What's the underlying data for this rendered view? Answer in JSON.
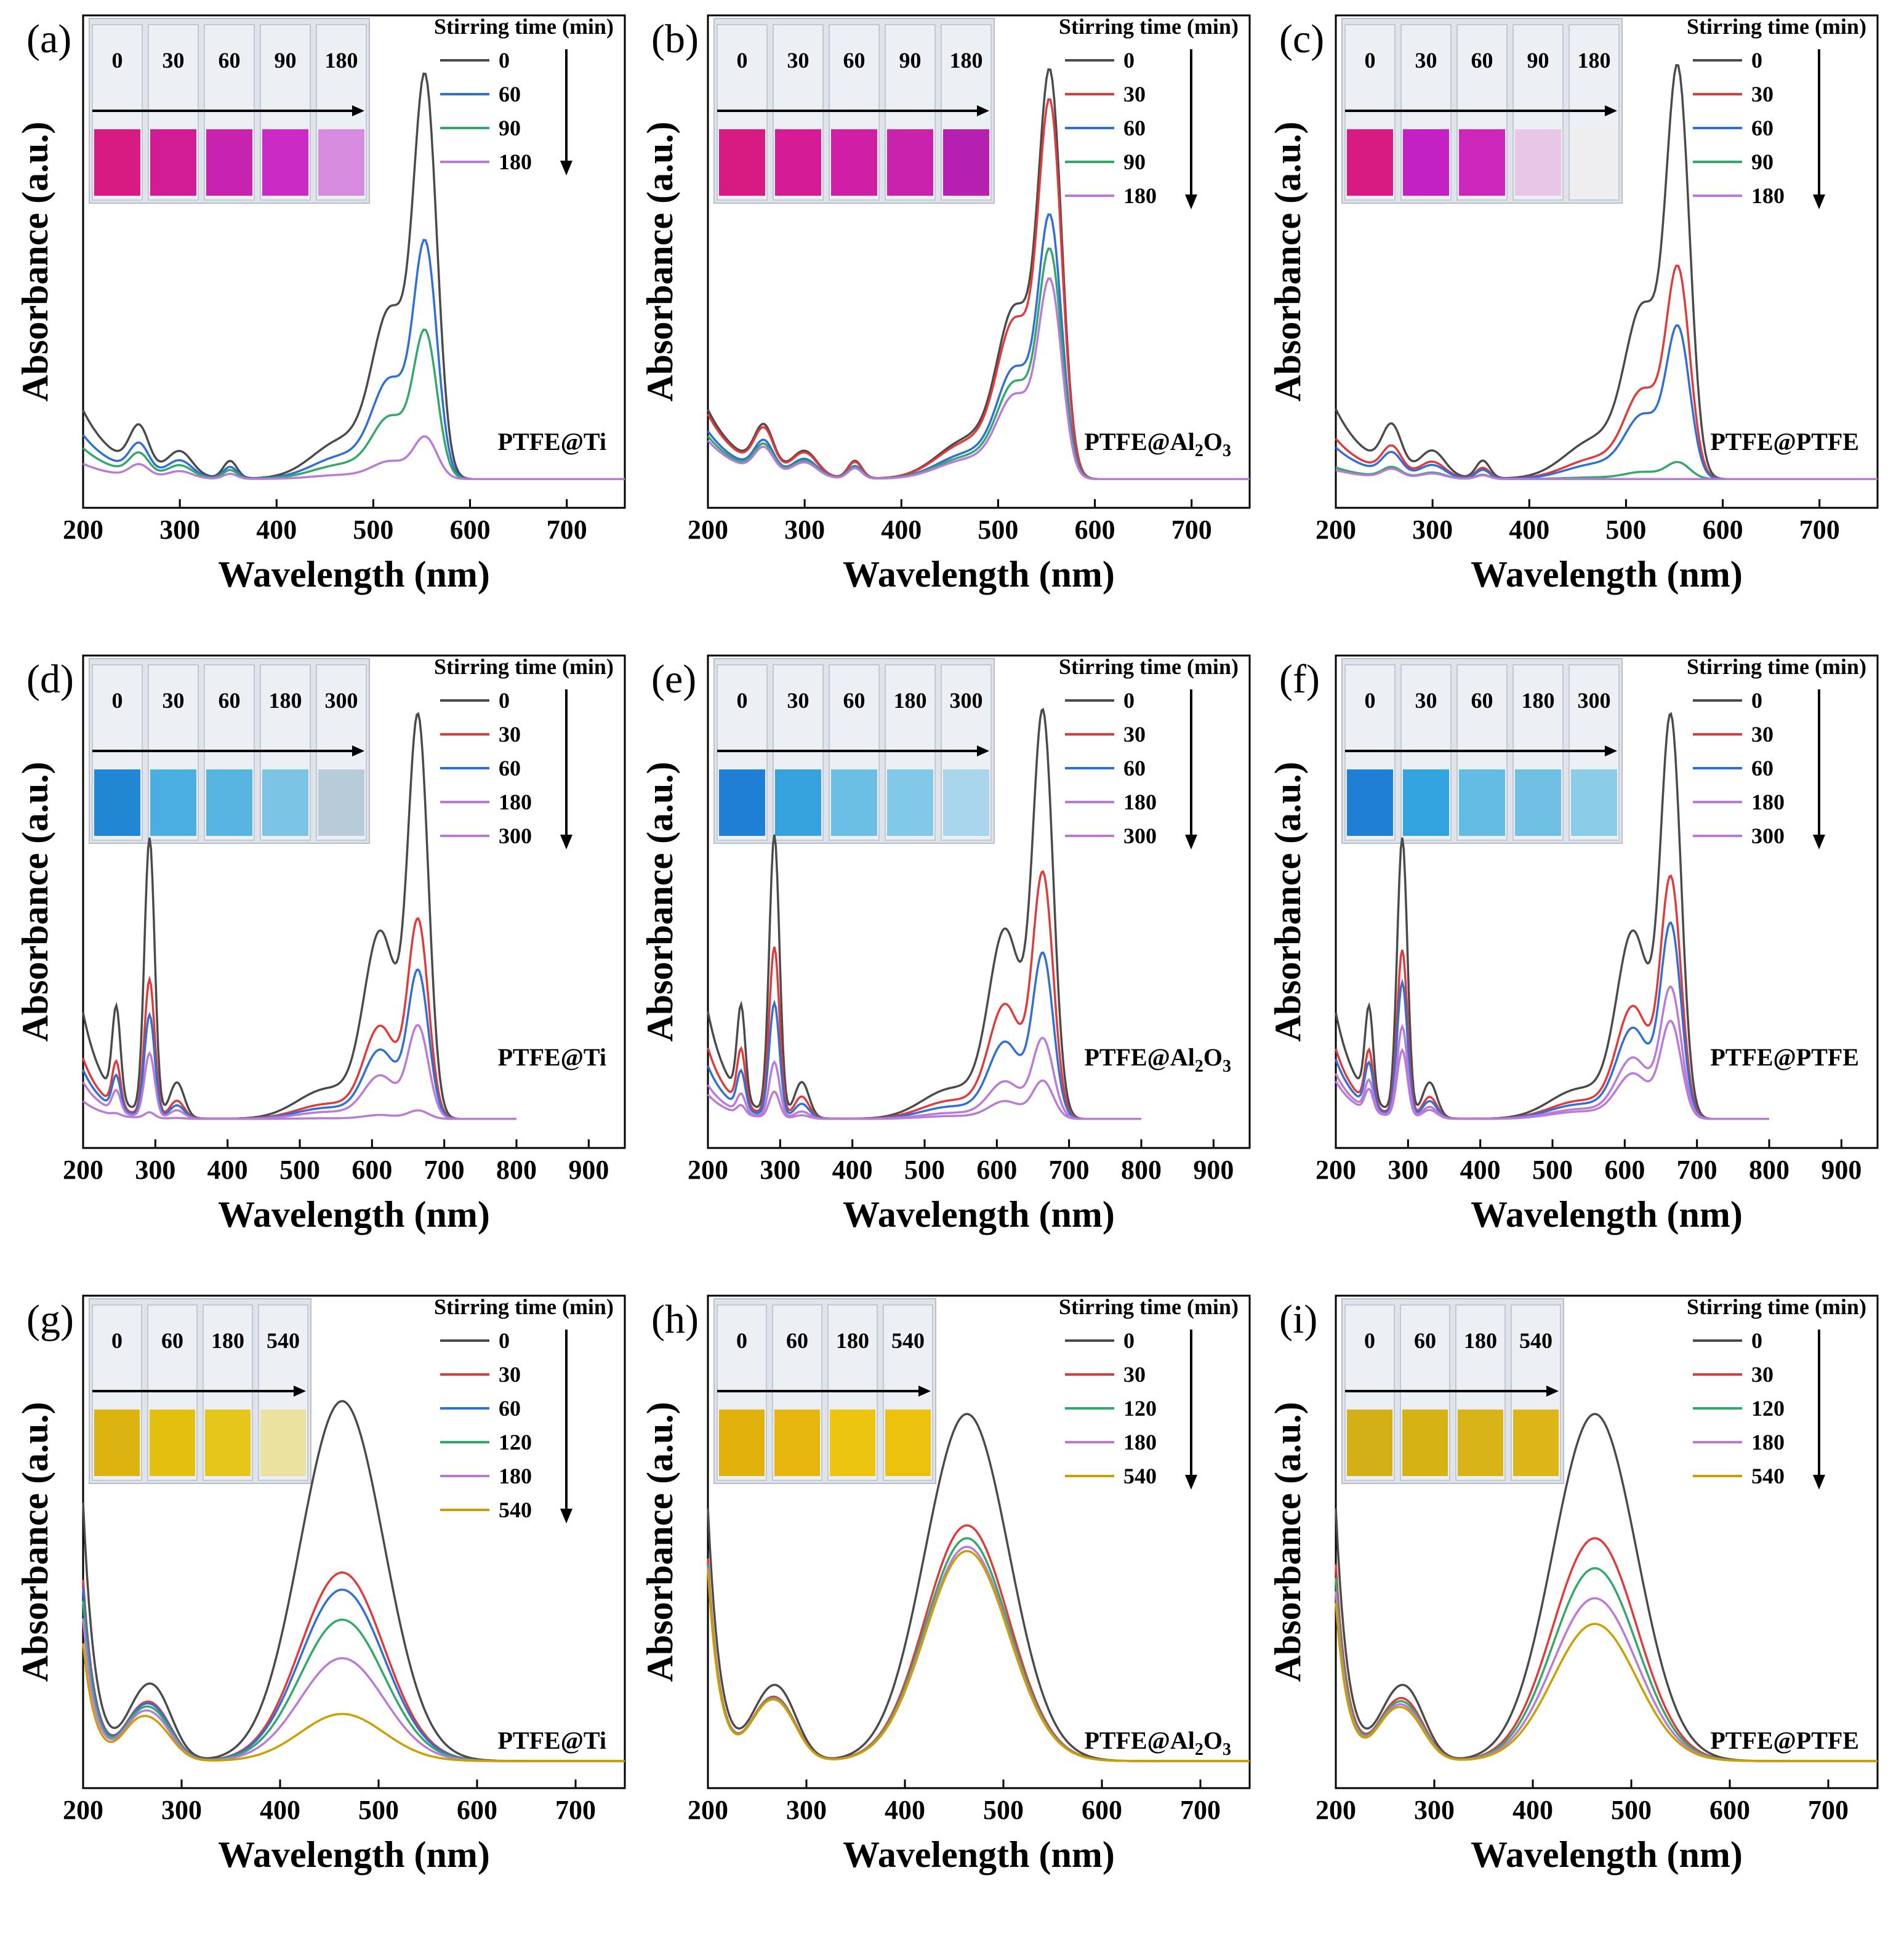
{
  "figure": {
    "ylabel": "Absorbance (a.u.)",
    "xlabel": "Wavelength (nm)",
    "legend_title": "Stirring time (min)"
  },
  "colors": {
    "0": "#4a4a4a",
    "30": "#e03a3a",
    "60": "#2f6fd6",
    "90": "#33a86a",
    "120": "#33a86a",
    "180": "#b97ad8",
    "300": "#b97ad8",
    "540": "#c9a000"
  },
  "chart_data": [
    {
      "type": "line",
      "panel": "(a)",
      "sample": "PTFE@Ti",
      "dye": "magenta",
      "xlim": [
        200,
        760
      ],
      "xticks": [
        200,
        300,
        400,
        500,
        600,
        700
      ],
      "legend": [
        "0",
        "60",
        "90",
        "180"
      ],
      "cuvette_labels": [
        "0",
        "30",
        "60",
        "90",
        "180"
      ],
      "cuvette_colors": [
        "#d81b82",
        "#d21c95",
        "#c823ae",
        "#cc2ac4",
        "#d88ce0"
      ],
      "series": [
        {
          "name": "0",
          "peak": 0.95
        },
        {
          "name": "60",
          "peak": 0.56
        },
        {
          "name": "90",
          "peak": 0.35
        },
        {
          "name": "180",
          "peak": 0.1
        }
      ]
    },
    {
      "type": "line",
      "panel": "(b)",
      "sample": "PTFE@Al2O3",
      "dye": "magenta",
      "xlim": [
        200,
        760
      ],
      "xticks": [
        200,
        300,
        400,
        500,
        600,
        700
      ],
      "legend": [
        "0",
        "30",
        "60",
        "90",
        "180"
      ],
      "cuvette_labels": [
        "0",
        "30",
        "60",
        "90",
        "180"
      ],
      "cuvette_colors": [
        "#d81b82",
        "#d31c95",
        "#cf1fa4",
        "#c922ac",
        "#b520b0"
      ],
      "series": [
        {
          "name": "0",
          "peak": 0.96
        },
        {
          "name": "30",
          "peak": 0.89
        },
        {
          "name": "60",
          "peak": 0.62
        },
        {
          "name": "90",
          "peak": 0.54
        },
        {
          "name": "180",
          "peak": 0.47
        }
      ]
    },
    {
      "type": "line",
      "panel": "(c)",
      "sample": "PTFE@PTFE",
      "dye": "magenta",
      "xlim": [
        200,
        760
      ],
      "xticks": [
        200,
        300,
        400,
        500,
        600,
        700
      ],
      "legend": [
        "0",
        "30",
        "60",
        "90",
        "180"
      ],
      "cuvette_labels": [
        "0",
        "30",
        "60",
        "90",
        "180"
      ],
      "cuvette_colors": [
        "#d81b82",
        "#c321c4",
        "#cc27ba",
        "#e8c6e8",
        "#eeeef0"
      ],
      "series": [
        {
          "name": "0",
          "peak": 0.97
        },
        {
          "name": "30",
          "peak": 0.5
        },
        {
          "name": "60",
          "peak": 0.36
        },
        {
          "name": "90",
          "peak": 0.04
        },
        {
          "name": "180",
          "peak": 0.0
        }
      ]
    },
    {
      "type": "line",
      "panel": "(d)",
      "sample": "PTFE@Ti",
      "dye": "blue",
      "xlim": [
        200,
        950
      ],
      "xticks": [
        200,
        300,
        400,
        500,
        600,
        700,
        800,
        900
      ],
      "legend": [
        "0",
        "30",
        "60",
        "180",
        "300"
      ],
      "cuvette_labels": [
        "0",
        "30",
        "60",
        "180",
        "300"
      ],
      "cuvette_colors": [
        "#2287d2",
        "#4aaee0",
        "#58b4e0",
        "#7cc4e6",
        "#b7cbd8"
      ],
      "series": [
        {
          "name": "0",
          "peak": 0.95
        },
        {
          "name": "30",
          "peak": 0.47
        },
        {
          "name": "60",
          "peak": 0.35
        },
        {
          "name": "180",
          "peak": 0.22
        },
        {
          "name": "300",
          "peak": 0.02
        }
      ]
    },
    {
      "type": "line",
      "panel": "(e)",
      "sample": "PTFE@Al2O3",
      "dye": "blue",
      "xlim": [
        200,
        950
      ],
      "xticks": [
        200,
        300,
        400,
        500,
        600,
        700,
        800,
        900
      ],
      "legend": [
        "0",
        "30",
        "60",
        "180",
        "300"
      ],
      "cuvette_labels": [
        "0",
        "30",
        "60",
        "180",
        "300"
      ],
      "cuvette_colors": [
        "#1e7fd4",
        "#36a2de",
        "#6cbfe4",
        "#82c8e8",
        "#a9d6ec"
      ],
      "series": [
        {
          "name": "0",
          "peak": 0.96
        },
        {
          "name": "30",
          "peak": 0.58
        },
        {
          "name": "60",
          "peak": 0.39
        },
        {
          "name": "180",
          "peak": 0.19
        },
        {
          "name": "300",
          "peak": 0.09
        }
      ]
    },
    {
      "type": "line",
      "panel": "(f)",
      "sample": "PTFE@PTFE",
      "dye": "blue",
      "xlim": [
        200,
        950
      ],
      "xticks": [
        200,
        300,
        400,
        500,
        600,
        700,
        800,
        900
      ],
      "legend": [
        "0",
        "30",
        "60",
        "180",
        "300"
      ],
      "cuvette_labels": [
        "0",
        "30",
        "60",
        "180",
        "300"
      ],
      "cuvette_colors": [
        "#1e7fd4",
        "#34a4e0",
        "#62bce4",
        "#6fc0e4",
        "#8bcde8"
      ],
      "series": [
        {
          "name": "0",
          "peak": 0.95
        },
        {
          "name": "30",
          "peak": 0.57
        },
        {
          "name": "60",
          "peak": 0.46
        },
        {
          "name": "180",
          "peak": 0.31
        },
        {
          "name": "300",
          "peak": 0.23
        }
      ]
    },
    {
      "type": "line",
      "panel": "(g)",
      "sample": "PTFE@Ti",
      "dye": "yellow",
      "xlim": [
        200,
        750
      ],
      "xticks": [
        200,
        300,
        400,
        500,
        600,
        700
      ],
      "legend": [
        "0",
        "30",
        "60",
        "120",
        "180",
        "540"
      ],
      "cuvette_labels": [
        "0",
        "60",
        "180",
        "540"
      ],
      "cuvette_colors": [
        "#dcb412",
        "#e3bf10",
        "#e6c61a",
        "#ece2a0"
      ],
      "series": [
        {
          "name": "0",
          "peak": 0.84
        },
        {
          "name": "30",
          "peak": 0.44
        },
        {
          "name": "60",
          "peak": 0.4
        },
        {
          "name": "120",
          "peak": 0.33
        },
        {
          "name": "180",
          "peak": 0.24
        },
        {
          "name": "540",
          "peak": 0.11
        }
      ]
    },
    {
      "type": "line",
      "panel": "(h)",
      "sample": "PTFE@Al2O3",
      "dye": "yellow",
      "xlim": [
        200,
        750
      ],
      "xticks": [
        200,
        300,
        400,
        500,
        600,
        700
      ],
      "legend": [
        "0",
        "30",
        "120",
        "180",
        "540"
      ],
      "cuvette_labels": [
        "0",
        "60",
        "180",
        "540"
      ],
      "cuvette_colors": [
        "#e2b20c",
        "#e6b60e",
        "#ecc510",
        "#ecc20e"
      ],
      "series": [
        {
          "name": "0",
          "peak": 0.81
        },
        {
          "name": "30",
          "peak": 0.55
        },
        {
          "name": "120",
          "peak": 0.52
        },
        {
          "name": "180",
          "peak": 0.5
        },
        {
          "name": "540",
          "peak": 0.49
        }
      ]
    },
    {
      "type": "line",
      "panel": "(i)",
      "sample": "PTFE@PTFE",
      "dye": "yellow",
      "xlim": [
        200,
        750
      ],
      "xticks": [
        200,
        300,
        400,
        500,
        600,
        700
      ],
      "legend": [
        "0",
        "30",
        "120",
        "180",
        "540"
      ],
      "cuvette_labels": [
        "0",
        "60",
        "180",
        "540"
      ],
      "cuvette_colors": [
        "#d4b018",
        "#d6b214",
        "#d8b418",
        "#dcb618"
      ],
      "series": [
        {
          "name": "0",
          "peak": 0.81
        },
        {
          "name": "30",
          "peak": 0.52
        },
        {
          "name": "120",
          "peak": 0.45
        },
        {
          "name": "180",
          "peak": 0.38
        },
        {
          "name": "540",
          "peak": 0.32
        }
      ]
    }
  ]
}
